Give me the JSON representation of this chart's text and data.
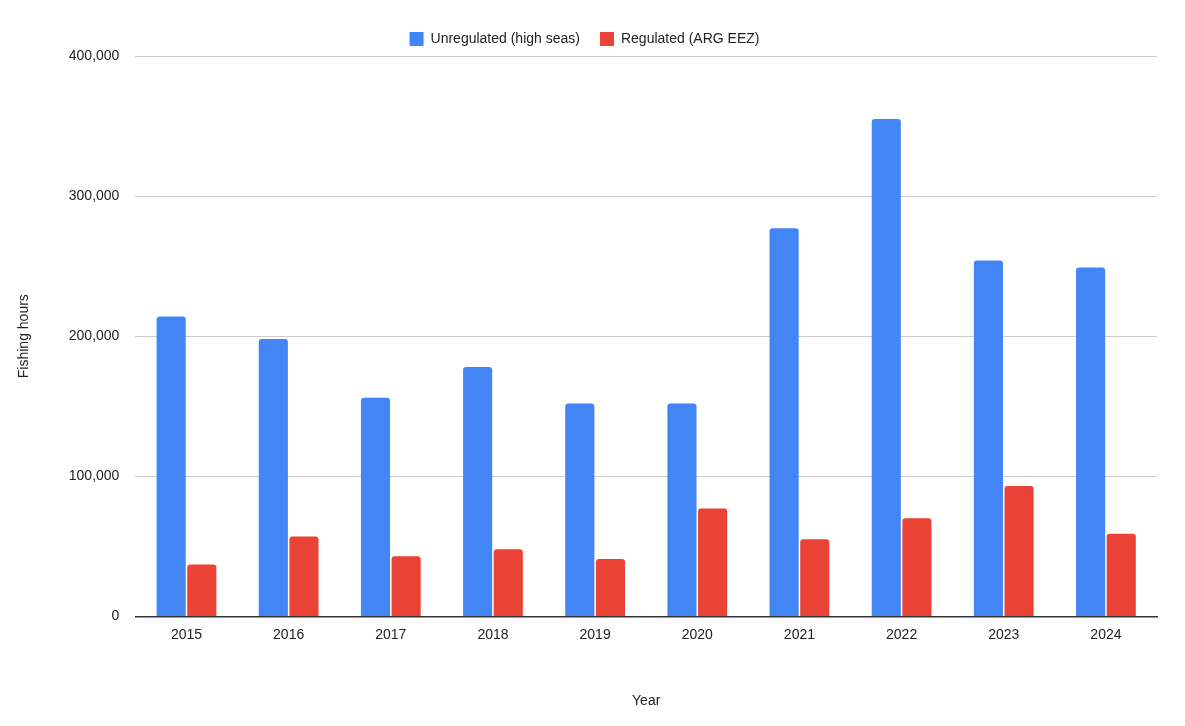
{
  "chart_data": {
    "type": "bar",
    "xlabel": "Year",
    "ylabel": "Fishing hours",
    "categories": [
      "2015",
      "2016",
      "2017",
      "2018",
      "2019",
      "2020",
      "2021",
      "2022",
      "2023",
      "2024"
    ],
    "series": [
      {
        "name": "Unregulated (high seas)",
        "color": "#4285f4",
        "values": [
          214000,
          198000,
          156000,
          178000,
          152000,
          152000,
          277000,
          355000,
          254000,
          249000
        ]
      },
      {
        "name": "Regulated (ARG EEZ)",
        "color": "#ea4335",
        "values": [
          37000,
          57000,
          43000,
          48000,
          41000,
          77000,
          55000,
          70000,
          93000,
          59000
        ]
      }
    ],
    "ylim": [
      0,
      400000
    ],
    "yticks": [
      {
        "value": 0,
        "label": "0"
      },
      {
        "value": 100000,
        "label": "100,000"
      },
      {
        "value": 200000,
        "label": "200,000"
      },
      {
        "value": 300000,
        "label": "300,000"
      },
      {
        "value": 400000,
        "label": "400,000"
      }
    ],
    "grid": "y",
    "legend": "top"
  }
}
